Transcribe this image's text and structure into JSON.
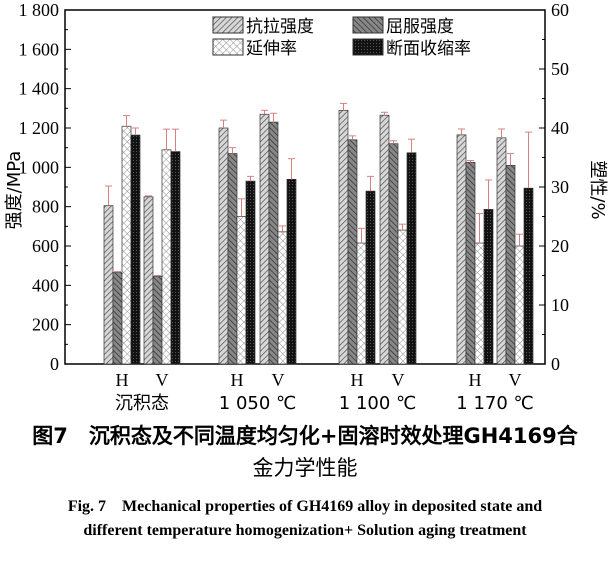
{
  "chart_data": {
    "type": "bar",
    "ylabel": "强度/MPa",
    "ylabel_right": "塑性/%",
    "ylim": [
      0,
      1800
    ],
    "ylim_right": [
      0,
      60
    ],
    "yticks": [
      "0",
      "200",
      "400",
      "600",
      "800",
      "1 000",
      "1 200",
      "1 400",
      "1 600",
      "1 800"
    ],
    "yticks_right": [
      "0",
      "10",
      "20",
      "30",
      "40",
      "50",
      "60"
    ],
    "groups": [
      "沉积态",
      "1 050 ℃",
      "1 100 ℃",
      "1 170 ℃"
    ],
    "subcategories": [
      "H",
      "V"
    ],
    "legend_position": "top-center",
    "series": [
      {
        "name": "抗拉强度",
        "axis": "left",
        "pattern": "diagonal-light",
        "values": [
          805,
          850,
          1200,
          1270,
          1290,
          1265,
          1165,
          1150
        ],
        "errors": [
          100,
          5,
          40,
          20,
          35,
          15,
          30,
          45
        ]
      },
      {
        "name": "屈服强度",
        "axis": "left",
        "pattern": "diagonal-dark",
        "values": [
          465,
          445,
          1070,
          1230,
          1140,
          1120,
          1025,
          1010
        ],
        "errors": [
          5,
          5,
          30,
          45,
          20,
          15,
          10,
          60
        ]
      },
      {
        "name": "延伸率",
        "axis": "right",
        "pattern": "crosshatch",
        "values": [
          40.3,
          36.3,
          25,
          22.4,
          20.5,
          22.7,
          20.5,
          20
        ],
        "errors": [
          1.8,
          3.5,
          3,
          1,
          2.5,
          1,
          5,
          2
        ]
      },
      {
        "name": "断面收缩率",
        "axis": "right",
        "pattern": "dark-dots",
        "values": [
          38.8,
          36,
          31,
          31.3,
          29.3,
          35.8,
          26.2,
          29.8
        ],
        "errors": [
          1.2,
          3.8,
          0.8,
          3.5,
          2.5,
          2.3,
          5,
          9.5
        ]
      }
    ]
  },
  "caption": {
    "cn_line1": "图7　沉积态及不同温度均匀化+固溶时效处理GH4169合",
    "cn_line2": "金力学性能",
    "en_line1": "Fig. 7　Mechanical properties of GH4169 alloy in deposited state and",
    "en_line2": "different temperature homogenization+ Solution aging treatment"
  }
}
